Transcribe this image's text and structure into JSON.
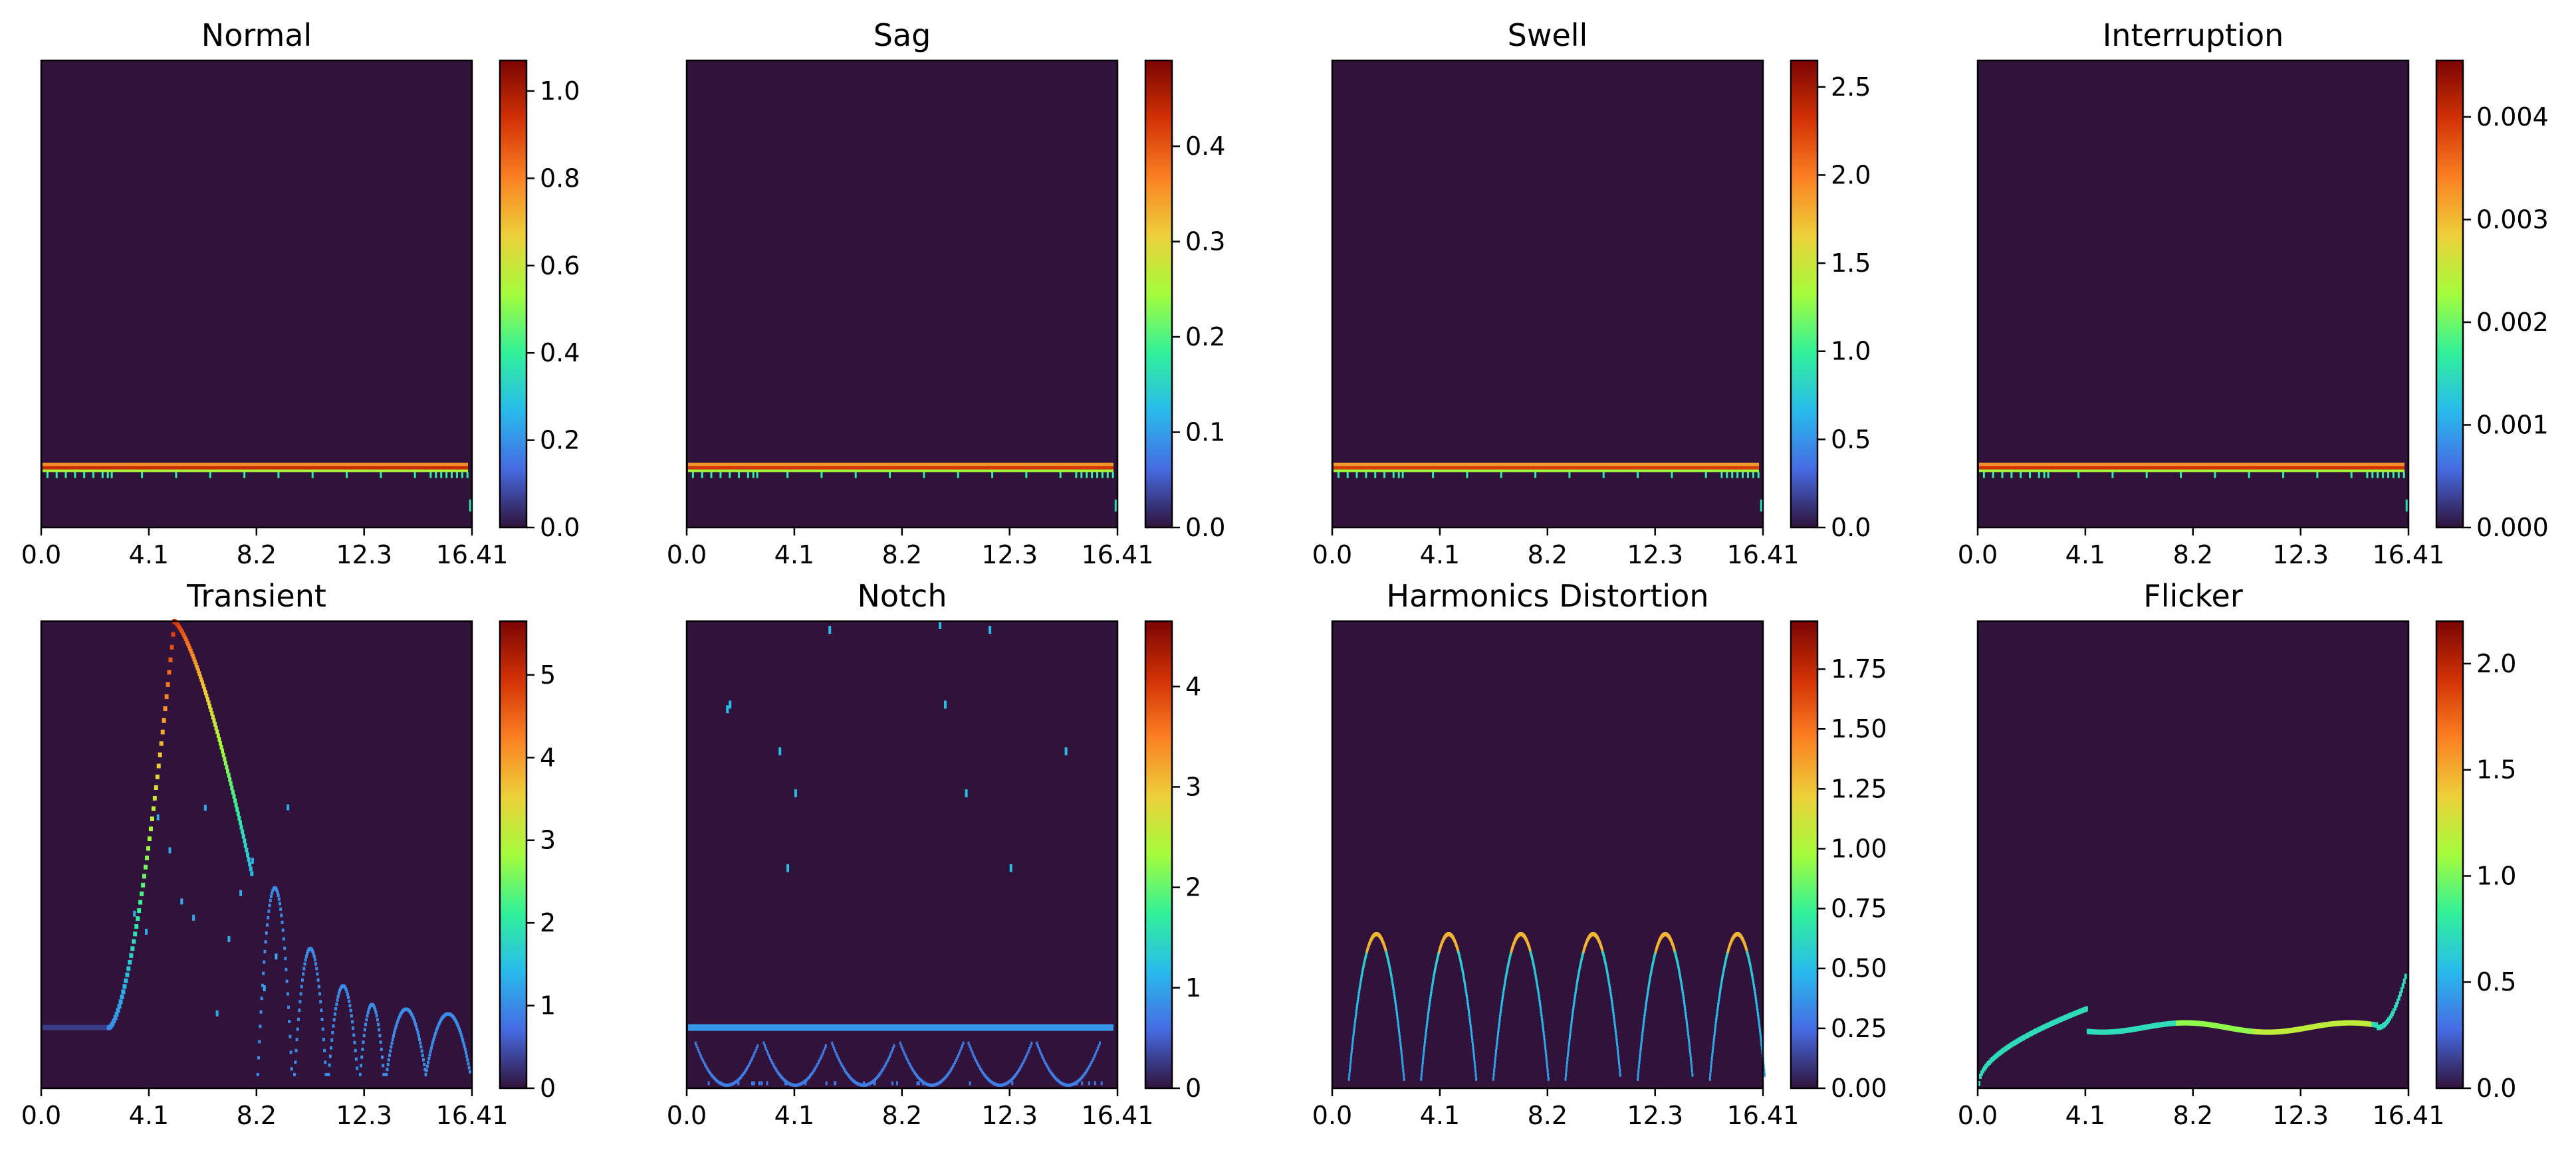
{
  "figure": {
    "layout": "2x4 grid of heatmaps (scalograms) each with a vertical colorbar on the right",
    "colormap": "turbo",
    "background_color": "#30123b",
    "axis_color": "#000000"
  },
  "chart_data": [
    {
      "type": "heatmap",
      "title": "Normal",
      "x_ticks": [
        "0.0",
        "4.1",
        "8.2",
        "12.3",
        "16.41"
      ],
      "xlim": [
        0,
        16.41
      ],
      "y_ticks_visible": false,
      "colorbar": {
        "range": [
          0,
          1.07
        ],
        "ticks": [
          "0.0",
          "0.2",
          "0.4",
          "0.6",
          "0.8",
          "1.0"
        ]
      },
      "pattern": "horizontal band at a single scale, near-constant across time",
      "band_level": 0.87,
      "band_peak_value": 1.0
    },
    {
      "type": "heatmap",
      "title": "Sag",
      "x_ticks": [
        "0.0",
        "4.1",
        "8.2",
        "12.3",
        "16.41"
      ],
      "xlim": [
        0,
        16.41
      ],
      "y_ticks_visible": false,
      "colorbar": {
        "range": [
          0,
          0.49
        ],
        "ticks": [
          "0.0",
          "0.1",
          "0.2",
          "0.3",
          "0.4"
        ]
      },
      "pattern": "horizontal band at a single scale, near-constant across time",
      "band_level": 0.87,
      "band_peak_value": 0.45
    },
    {
      "type": "heatmap",
      "title": "Swell",
      "x_ticks": [
        "0.0",
        "4.1",
        "8.2",
        "12.3",
        "16.41"
      ],
      "xlim": [
        0,
        16.41
      ],
      "y_ticks_visible": false,
      "colorbar": {
        "range": [
          0,
          2.65
        ],
        "ticks": [
          "0.0",
          "0.5",
          "1.0",
          "1.5",
          "2.0",
          "2.5"
        ]
      },
      "pattern": "horizontal band at a single scale, near-constant across time",
      "band_level": 0.87,
      "band_peak_value": 2.4
    },
    {
      "type": "heatmap",
      "title": "Interruption",
      "x_ticks": [
        "0.0",
        "4.1",
        "8.2",
        "12.3",
        "16.41"
      ],
      "xlim": [
        0,
        16.41
      ],
      "y_ticks_visible": false,
      "colorbar": {
        "range": [
          0,
          0.00455
        ],
        "ticks": [
          "0.000",
          "0.001",
          "0.002",
          "0.003",
          "0.004"
        ]
      },
      "pattern": "horizontal band at a single scale, near-constant across time",
      "band_level": 0.87,
      "band_peak_value": 0.0042
    },
    {
      "type": "heatmap",
      "title": "Transient",
      "x_ticks": [
        "0.0",
        "4.1",
        "8.2",
        "12.3",
        "16.41"
      ],
      "xlim": [
        0,
        16.41
      ],
      "y_ticks_visible": false,
      "colorbar": {
        "range": [
          0,
          5.65
        ],
        "ticks": [
          "0",
          "1",
          "2",
          "3",
          "4",
          "5"
        ]
      },
      "pattern": "flat band at low scale until ~t=3.5, then a tall peak near t=5 decaying into oscillating arcs toward t=16",
      "band_level": 0.87,
      "band_peak_value": 1.0
    },
    {
      "type": "heatmap",
      "title": "Notch",
      "x_ticks": [
        "0.0",
        "4.1",
        "8.2",
        "12.3",
        "16.41"
      ],
      "xlim": [
        0,
        16.41
      ],
      "y_ticks_visible": false,
      "colorbar": {
        "range": [
          0,
          4.65
        ],
        "ticks": [
          "0",
          "1",
          "2",
          "3",
          "4"
        ]
      },
      "pattern": "band at low scale with periodic notch arcs and sparse isolated dots higher up",
      "band_level": 0.87,
      "band_peak_value": 0.9
    },
    {
      "type": "heatmap",
      "title": "Harmonics Distortion",
      "x_ticks": [
        "0.0",
        "4.1",
        "8.2",
        "12.3",
        "16.41"
      ],
      "xlim": [
        0,
        16.41
      ],
      "y_ticks_visible": false,
      "colorbar": {
        "range": [
          0,
          1.95
        ],
        "ticks": [
          "0.00",
          "0.25",
          "0.50",
          "0.75",
          "1.00",
          "1.25",
          "1.50",
          "1.75"
        ]
      },
      "pattern": "six evenly spaced arch-shaped ridges peaking at mid-low scale",
      "band_level": 0.7,
      "band_peak_value": 1.3
    },
    {
      "type": "heatmap",
      "title": "Flicker",
      "x_ticks": [
        "0.0",
        "4.1",
        "8.2",
        "12.3",
        "16.41"
      ],
      "xlim": [
        0,
        16.41
      ],
      "y_ticks_visible": false,
      "colorbar": {
        "range": [
          0,
          2.2
        ],
        "ticks": [
          "0.0",
          "0.5",
          "1.0",
          "1.5",
          "2.0"
        ]
      },
      "pattern": "curve rising from bottom-left, flattening into a band around mid-low scale, slight rise at the right edge",
      "band_level": 0.86,
      "band_peak_value": 0.8
    }
  ]
}
